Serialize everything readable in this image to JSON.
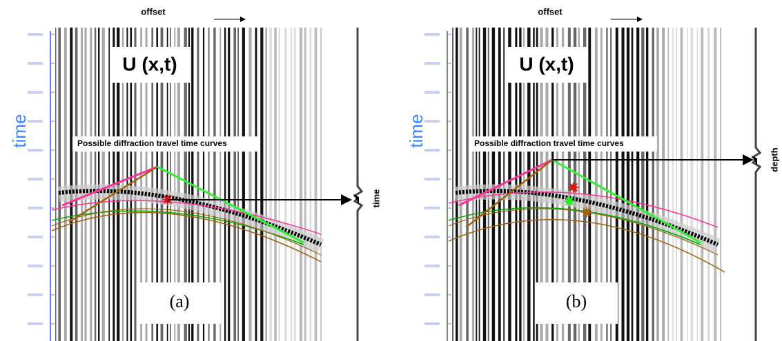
{
  "panels": [
    {
      "offset_label": "offset",
      "time_axis_label": "time",
      "field_label": "U (x,t)",
      "annotation": "Possible diffraction travel time curves",
      "panel_label": "(a)",
      "trace_label": "time"
    },
    {
      "offset_label": "offset",
      "time_axis_label": "time",
      "field_label": "U (x,t)",
      "annotation": "Possible diffraction travel time curves",
      "panel_label": "(b)",
      "trace_label": "depth"
    }
  ]
}
